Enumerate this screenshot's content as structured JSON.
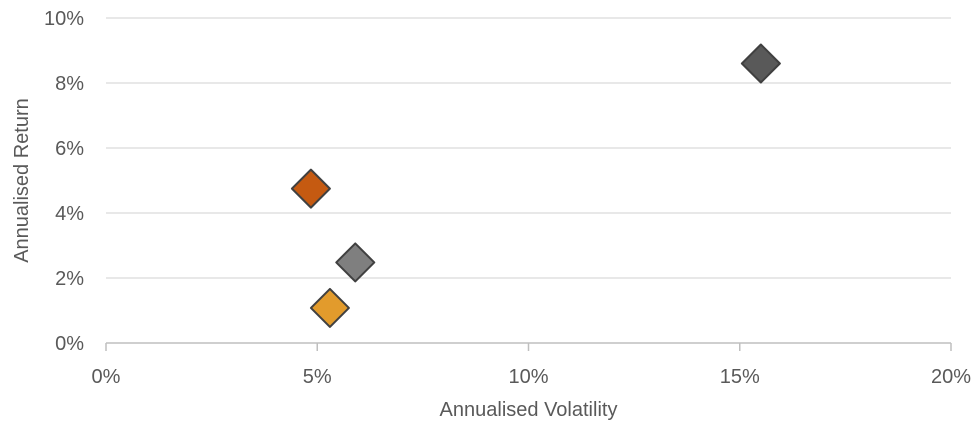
{
  "chart_data": {
    "type": "scatter",
    "title": "",
    "xlabel": "Annualised Volatility",
    "ylabel": "Annualised Return",
    "xlim": [
      0,
      0.2
    ],
    "ylim": [
      0,
      0.1
    ],
    "x_ticks": [
      "0%",
      "5%",
      "10%",
      "15%",
      "20%"
    ],
    "y_ticks": [
      "0%",
      "2%",
      "4%",
      "6%",
      "8%",
      "10%"
    ],
    "grid": "horizontal",
    "legend": "none",
    "marker": "diamond",
    "points": [
      {
        "x": 0.155,
        "y": 0.086,
        "color": "#595959"
      },
      {
        "x": 0.0485,
        "y": 0.0475,
        "color": "#C55A11"
      },
      {
        "x": 0.059,
        "y": 0.0248,
        "color": "#7F7F7F"
      },
      {
        "x": 0.053,
        "y": 0.0108,
        "color": "#E29B2C"
      }
    ],
    "colors": {
      "gridline": "#D9D9D9",
      "axis": "#BFBFBF",
      "marker_stroke": "#404040",
      "text": "#595959"
    }
  }
}
